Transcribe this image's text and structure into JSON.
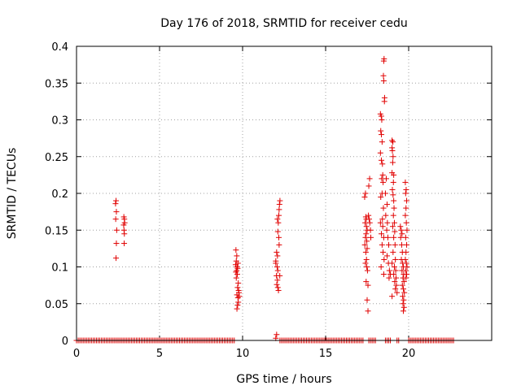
{
  "chart_data": {
    "type": "scatter",
    "title": "Day 176 of 2018, SRMTID for receiver cedu",
    "xlabel": "GPS time / hours",
    "ylabel": "SRMTID / TECUs",
    "xlim": [
      0,
      25
    ],
    "ylim": [
      0,
      0.4
    ],
    "grid": true,
    "marker": "plus",
    "xticks": [
      0,
      5,
      10,
      15,
      20
    ],
    "xtick_labels": [
      "0",
      "5",
      "10",
      "15",
      "20"
    ],
    "yticks": [
      0,
      0.05,
      0.1,
      0.15,
      0.2,
      0.25,
      0.3,
      0.35,
      0.4
    ],
    "ytick_labels": [
      "0",
      "0.05",
      "0.1",
      "0.15",
      "0.2",
      "0.25",
      "0.3",
      "0.35",
      "0.4"
    ],
    "series": [
      {
        "name": "SRMTID",
        "color": "#e00000",
        "zero_ranges": [
          [
            0.0,
            9.55
          ],
          [
            12.25,
            17.3
          ],
          [
            17.6,
            18.0
          ],
          [
            18.6,
            18.9
          ],
          [
            19.3,
            19.4
          ],
          [
            20.0,
            22.7
          ]
        ],
        "points": [
          [
            2.35,
            0.186
          ],
          [
            2.38,
            0.19
          ],
          [
            2.4,
            0.175
          ],
          [
            2.36,
            0.165
          ],
          [
            2.42,
            0.15
          ],
          [
            2.4,
            0.132
          ],
          [
            2.38,
            0.112
          ],
          [
            2.85,
            0.168
          ],
          [
            2.88,
            0.165
          ],
          [
            2.9,
            0.16
          ],
          [
            2.84,
            0.157
          ],
          [
            2.86,
            0.15
          ],
          [
            2.88,
            0.145
          ],
          [
            2.87,
            0.132
          ],
          [
            9.6,
            0.123
          ],
          [
            9.65,
            0.115
          ],
          [
            9.62,
            0.108
          ],
          [
            9.58,
            0.103
          ],
          [
            9.66,
            0.1
          ],
          [
            9.7,
            0.098
          ],
          [
            9.64,
            0.095
          ],
          [
            9.6,
            0.093
          ],
          [
            9.72,
            0.105
          ],
          [
            9.68,
            0.09
          ],
          [
            9.62,
            0.085
          ],
          [
            9.74,
            0.078
          ],
          [
            9.7,
            0.072
          ],
          [
            9.76,
            0.068
          ],
          [
            9.66,
            0.062
          ],
          [
            9.72,
            0.058
          ],
          [
            9.8,
            0.06
          ],
          [
            9.74,
            0.052
          ],
          [
            9.7,
            0.048
          ],
          [
            9.66,
            0.043
          ],
          [
            9.78,
            0.065
          ],
          [
            12.0,
            0.003
          ],
          [
            12.05,
            0.008
          ],
          [
            12.05,
            0.12
          ],
          [
            12.1,
            0.115
          ],
          [
            12.0,
            0.108
          ],
          [
            12.08,
            0.1
          ],
          [
            12.12,
            0.095
          ],
          [
            12.04,
            0.088
          ],
          [
            12.1,
            0.082
          ],
          [
            12.06,
            0.076
          ],
          [
            12.12,
            0.072
          ],
          [
            12.16,
            0.068
          ],
          [
            12.0,
            0.105
          ],
          [
            12.15,
            0.16
          ],
          [
            12.1,
            0.165
          ],
          [
            12.18,
            0.17
          ],
          [
            12.2,
            0.178
          ],
          [
            12.22,
            0.185
          ],
          [
            12.25,
            0.19
          ],
          [
            12.12,
            0.148
          ],
          [
            12.18,
            0.14
          ],
          [
            12.2,
            0.13
          ],
          [
            12.24,
            0.088
          ],
          [
            17.35,
            0.195
          ],
          [
            17.4,
            0.2
          ],
          [
            17.42,
            0.168
          ],
          [
            17.45,
            0.165
          ],
          [
            17.38,
            0.16
          ],
          [
            17.46,
            0.155
          ],
          [
            17.5,
            0.15
          ],
          [
            17.44,
            0.145
          ],
          [
            17.4,
            0.14
          ],
          [
            17.48,
            0.135
          ],
          [
            17.36,
            0.13
          ],
          [
            17.5,
            0.125
          ],
          [
            17.42,
            0.12
          ],
          [
            17.46,
            0.11
          ],
          [
            17.4,
            0.105
          ],
          [
            17.48,
            0.1
          ],
          [
            17.52,
            0.095
          ],
          [
            17.44,
            0.08
          ],
          [
            17.55,
            0.075
          ],
          [
            17.5,
            0.055
          ],
          [
            17.55,
            0.04
          ],
          [
            17.6,
            0.21
          ],
          [
            17.65,
            0.22
          ],
          [
            17.62,
            0.165
          ],
          [
            17.58,
            0.17
          ],
          [
            17.66,
            0.16
          ],
          [
            17.7,
            0.15
          ],
          [
            17.72,
            0.14
          ],
          [
            18.3,
            0.308
          ],
          [
            18.35,
            0.305
          ],
          [
            18.38,
            0.3
          ],
          [
            18.32,
            0.285
          ],
          [
            18.36,
            0.28
          ],
          [
            18.4,
            0.27
          ],
          [
            18.3,
            0.255
          ],
          [
            18.36,
            0.245
          ],
          [
            18.42,
            0.24
          ],
          [
            18.44,
            0.225
          ],
          [
            18.38,
            0.22
          ],
          [
            18.46,
            0.215
          ],
          [
            18.4,
            0.2
          ],
          [
            18.32,
            0.195
          ],
          [
            18.48,
            0.18
          ],
          [
            18.42,
            0.165
          ],
          [
            18.3,
            0.16
          ],
          [
            18.44,
            0.155
          ],
          [
            18.36,
            0.145
          ],
          [
            18.5,
            0.14
          ],
          [
            18.4,
            0.13
          ],
          [
            18.46,
            0.12
          ],
          [
            18.52,
            0.11
          ],
          [
            18.34,
            0.1
          ],
          [
            18.5,
            0.09
          ],
          [
            18.5,
            0.38
          ],
          [
            18.52,
            0.383
          ],
          [
            18.48,
            0.36
          ],
          [
            18.5,
            0.353
          ],
          [
            18.55,
            0.33
          ],
          [
            18.54,
            0.325
          ],
          [
            18.6,
            0.2
          ],
          [
            18.65,
            0.22
          ],
          [
            18.7,
            0.185
          ],
          [
            18.62,
            0.17
          ],
          [
            18.72,
            0.16
          ],
          [
            18.68,
            0.15
          ],
          [
            18.75,
            0.14
          ],
          [
            18.8,
            0.13
          ],
          [
            18.7,
            0.115
          ],
          [
            18.78,
            0.105
          ],
          [
            18.84,
            0.095
          ],
          [
            18.9,
            0.09
          ],
          [
            18.82,
            0.085
          ],
          [
            19.0,
            0.272
          ],
          [
            19.05,
            0.27
          ],
          [
            19.0,
            0.262
          ],
          [
            19.02,
            0.258
          ],
          [
            19.06,
            0.25
          ],
          [
            19.04,
            0.242
          ],
          [
            19.0,
            0.228
          ],
          [
            19.1,
            0.225
          ],
          [
            19.08,
            0.215
          ],
          [
            19.02,
            0.205
          ],
          [
            19.06,
            0.198
          ],
          [
            19.1,
            0.19
          ],
          [
            19.12,
            0.18
          ],
          [
            19.08,
            0.17
          ],
          [
            19.14,
            0.16
          ],
          [
            19.04,
            0.155
          ],
          [
            19.16,
            0.148
          ],
          [
            19.1,
            0.14
          ],
          [
            19.18,
            0.13
          ],
          [
            19.06,
            0.12
          ],
          [
            19.2,
            0.11
          ],
          [
            19.0,
            0.105
          ],
          [
            19.14,
            0.1
          ],
          [
            19.22,
            0.095
          ],
          [
            19.1,
            0.09
          ],
          [
            19.24,
            0.085
          ],
          [
            19.16,
            0.08
          ],
          [
            19.26,
            0.075
          ],
          [
            19.2,
            0.07
          ],
          [
            19.0,
            0.06
          ],
          [
            19.3,
            0.065
          ],
          [
            19.5,
            0.155
          ],
          [
            19.55,
            0.15
          ],
          [
            19.6,
            0.145
          ],
          [
            19.52,
            0.14
          ],
          [
            19.58,
            0.13
          ],
          [
            19.62,
            0.12
          ],
          [
            19.56,
            0.11
          ],
          [
            19.64,
            0.105
          ],
          [
            19.68,
            0.1
          ],
          [
            19.6,
            0.095
          ],
          [
            19.7,
            0.09
          ],
          [
            19.66,
            0.085
          ],
          [
            19.72,
            0.08
          ],
          [
            19.62,
            0.075
          ],
          [
            19.68,
            0.07
          ],
          [
            19.74,
            0.065
          ],
          [
            19.64,
            0.06
          ],
          [
            19.7,
            0.055
          ],
          [
            19.66,
            0.05
          ],
          [
            19.72,
            0.045
          ],
          [
            19.68,
            0.04
          ],
          [
            19.8,
            0.215
          ],
          [
            19.85,
            0.205
          ],
          [
            19.82,
            0.2
          ],
          [
            19.88,
            0.19
          ],
          [
            19.84,
            0.18
          ],
          [
            19.8,
            0.17
          ],
          [
            19.86,
            0.16
          ],
          [
            19.9,
            0.15
          ],
          [
            19.82,
            0.14
          ],
          [
            19.88,
            0.13
          ],
          [
            19.84,
            0.12
          ],
          [
            19.8,
            0.11
          ],
          [
            19.86,
            0.105
          ],
          [
            19.9,
            0.1
          ],
          [
            19.82,
            0.095
          ],
          [
            19.88,
            0.09
          ],
          [
            19.84,
            0.085
          ]
        ]
      }
    ]
  }
}
